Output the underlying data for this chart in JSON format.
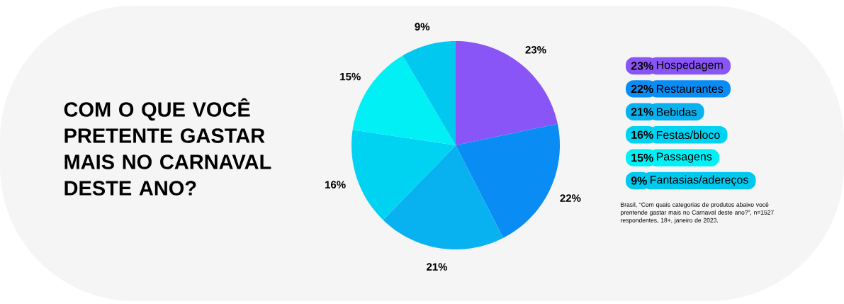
{
  "chart_data": {
    "type": "pie",
    "title": "COM O QUE VOCÊ PRETENTE GASTAR MAIS NO CARNAVAL DESTE ANO?",
    "categories": [
      "Hospedagem",
      "Restaurantes",
      "Bebidas",
      "Festas/bloco",
      "Passagens",
      "Fantasias/adereços"
    ],
    "values": [
      23,
      22,
      21,
      16,
      15,
      9
    ],
    "value_labels": [
      "23%",
      "22%",
      "21%",
      "16%",
      "15%",
      "9%"
    ],
    "colors": [
      "#8a55f7",
      "#0a8cf5",
      "#08b2f0",
      "#00d3f2",
      "#00f0f5",
      "#00c8ee"
    ],
    "legend": "right",
    "annotations": [
      "Brasil, “Com quais categorias de produtos abaixo você prentende gastar mais no Carnaval deste ano?”, n=1527 respondentes, 18+, janeiro de 2023."
    ]
  }
}
